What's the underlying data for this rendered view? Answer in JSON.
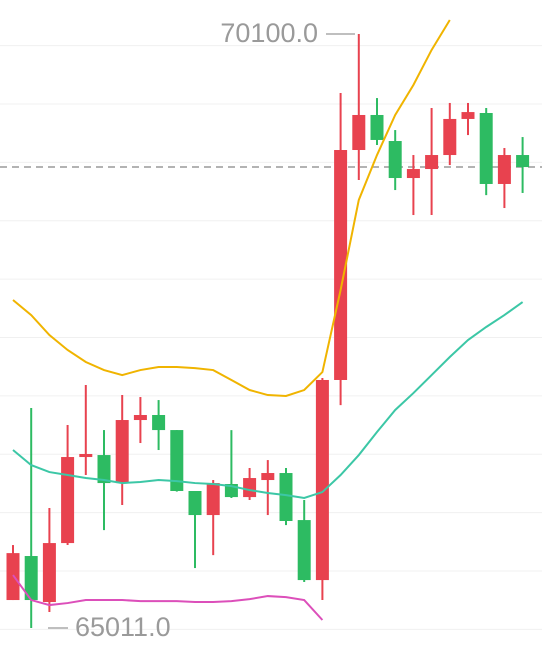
{
  "chart_data": {
    "type": "candlestick",
    "ylim": [
      64823,
      70391
    ],
    "ygrid": [
      65000,
      65500,
      66000,
      66500,
      67000,
      67500,
      68000,
      68500,
      69000,
      69500,
      70000
    ],
    "price_line": 68960,
    "up_color": "#e8424f",
    "down_color": "#2dbb62",
    "open": [
      65251,
      65628,
      65234,
      65739,
      66476,
      66493,
      66253,
      66793,
      66836,
      66707,
      66185,
      65979,
      66245,
      66133,
      66279,
      66339,
      65936,
      65422,
      67136,
      69106,
      69406,
      69183,
      68866,
      68943,
      69063,
      69372,
      69423,
      68815,
      69063
    ],
    "high": [
      65722,
      66896,
      66039,
      66750,
      67093,
      66707,
      67007,
      66990,
      66964,
      66707,
      66185,
      66279,
      66707,
      66382,
      66450,
      66382,
      66108,
      67153,
      69594,
      70100,
      69551,
      69277,
      69063,
      69466,
      69509,
      69509,
      69466,
      69123,
      69217
    ],
    "low": [
      65251,
      65011,
      65148,
      65722,
      66322,
      65850,
      66065,
      66596,
      66536,
      66180,
      65525,
      65636,
      66125,
      66108,
      65979,
      65893,
      65405,
      65251,
      66921,
      68849,
      69149,
      68763,
      68549,
      68549,
      68977,
      69234,
      68720,
      68609,
      68738
    ],
    "close": [
      65653,
      65251,
      65739,
      66476,
      66502,
      66253,
      66793,
      66836,
      66707,
      66185,
      65979,
      66253,
      66133,
      66296,
      66339,
      65928,
      65422,
      67136,
      69106,
      69406,
      69192,
      68866,
      68943,
      69063,
      69372,
      69431,
      68815,
      69063,
      68960
    ],
    "lines": [
      {
        "color": "#f0b400",
        "values": [
          67821,
          67692,
          67521,
          67393,
          67290,
          67221,
          67178,
          67221,
          67247,
          67247,
          67238,
          67221,
          67136,
          67050,
          67007,
          66999,
          67050,
          67204,
          67907,
          68678,
          69063,
          69406,
          69663,
          69963,
          70220,
          null,
          null,
          null,
          null
        ]
      },
      {
        "color": "#3cc7a6",
        "values": [
          66536,
          66407,
          66347,
          66322,
          66296,
          66279,
          66253,
          66262,
          66279,
          66270,
          66253,
          66245,
          66227,
          66193,
          66168,
          66150,
          66125,
          66176,
          66322,
          66493,
          66690,
          66879,
          67024,
          67178,
          67333,
          67478,
          67590,
          67692,
          67804
        ]
      },
      {
        "color": "#dc4fba",
        "values": [
          65465,
          65251,
          65208,
          65225,
          65251,
          65251,
          65251,
          65242,
          65242,
          65242,
          65234,
          65234,
          65242,
          65259,
          65285,
          65276,
          65251,
          65080,
          null,
          null,
          null,
          null,
          null,
          null,
          null,
          null,
          null,
          null,
          null
        ]
      }
    ],
    "annotations": [
      {
        "value": 70100,
        "label": "70100.0"
      },
      {
        "value": 65011,
        "label": "65011.0"
      }
    ]
  }
}
